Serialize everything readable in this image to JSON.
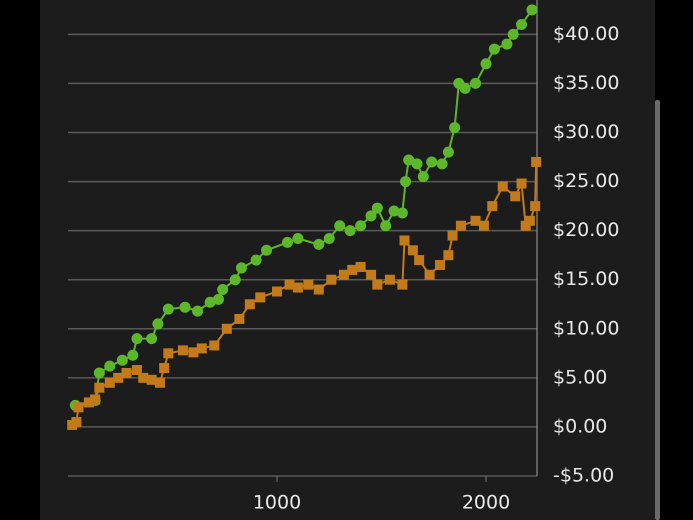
{
  "chart_data": {
    "type": "line",
    "x_scale": "linear",
    "xlim": [
      0,
      2244
    ],
    "xticks": [
      1000,
      2000
    ],
    "ylim": [
      -5,
      43.5
    ],
    "yticks": [
      {
        "value": -5,
        "label": "-$5.00"
      },
      {
        "value": 0,
        "label": "$0.00"
      },
      {
        "value": 5,
        "label": "$5.00"
      },
      {
        "value": 10,
        "label": "$10.00"
      },
      {
        "value": 15,
        "label": "$15.00"
      },
      {
        "value": 20,
        "label": "$20.00"
      },
      {
        "value": 25,
        "label": "$25.00"
      },
      {
        "value": 30,
        "label": "$30.00"
      },
      {
        "value": 35,
        "label": "$35.00"
      },
      {
        "value": 40,
        "label": "$40.00"
      }
    ],
    "grid": true,
    "series": [
      {
        "color": "#5cb82a",
        "marker": "circle",
        "x": [
          35,
          130,
          150,
          200,
          260,
          310,
          330,
          400,
          430,
          480,
          560,
          620,
          680,
          720,
          740,
          800,
          830,
          900,
          950,
          1050,
          1100,
          1200,
          1250,
          1300,
          1350,
          1400,
          1450,
          1480,
          1520,
          1560,
          1600,
          1615,
          1630,
          1670,
          1700,
          1740,
          1790,
          1820,
          1850,
          1870,
          1900,
          1950,
          2000,
          2040,
          2100,
          2130,
          2170,
          2220
        ],
        "values": [
          2.2,
          2.7,
          5.5,
          6.2,
          6.8,
          7.3,
          9.0,
          9.0,
          10.5,
          12.0,
          12.2,
          11.8,
          12.7,
          13.0,
          14.0,
          15.0,
          16.2,
          17.0,
          18.0,
          18.8,
          19.2,
          18.6,
          19.2,
          20.5,
          20.0,
          20.5,
          21.5,
          22.3,
          20.5,
          22.0,
          21.8,
          25.0,
          27.2,
          26.8,
          25.5,
          27.0,
          26.8,
          28.0,
          30.5,
          35.0,
          34.5,
          35.0,
          37.0,
          38.5,
          39.0,
          40.0,
          41.0,
          42.5
        ]
      },
      {
        "color": "#c27a1a",
        "marker": "square",
        "x": [
          20,
          40,
          50,
          100,
          130,
          150,
          200,
          240,
          280,
          330,
          360,
          400,
          440,
          460,
          480,
          550,
          600,
          640,
          700,
          760,
          820,
          870,
          920,
          1000,
          1060,
          1100,
          1150,
          1200,
          1260,
          1320,
          1360,
          1400,
          1450,
          1480,
          1540,
          1600,
          1610,
          1650,
          1680,
          1730,
          1780,
          1820,
          1840,
          1880,
          1950,
          1990,
          2030,
          2080,
          2140,
          2170,
          2190,
          2210,
          2235,
          2240
        ],
        "values": [
          0.2,
          0.5,
          2.0,
          2.5,
          2.8,
          4.0,
          4.5,
          5.0,
          5.5,
          5.8,
          5.0,
          4.8,
          4.5,
          6.0,
          7.5,
          7.8,
          7.6,
          8.0,
          8.3,
          10.0,
          11.0,
          12.5,
          13.2,
          13.8,
          14.5,
          14.2,
          14.5,
          14.0,
          15.0,
          15.5,
          16.0,
          16.3,
          15.5,
          14.5,
          15.0,
          14.5,
          19.0,
          18.0,
          17.0,
          15.5,
          16.5,
          17.5,
          19.5,
          20.5,
          21.0,
          20.5,
          22.5,
          24.5,
          23.5,
          24.8,
          20.5,
          21.0,
          22.5,
          27.0
        ]
      }
    ]
  }
}
